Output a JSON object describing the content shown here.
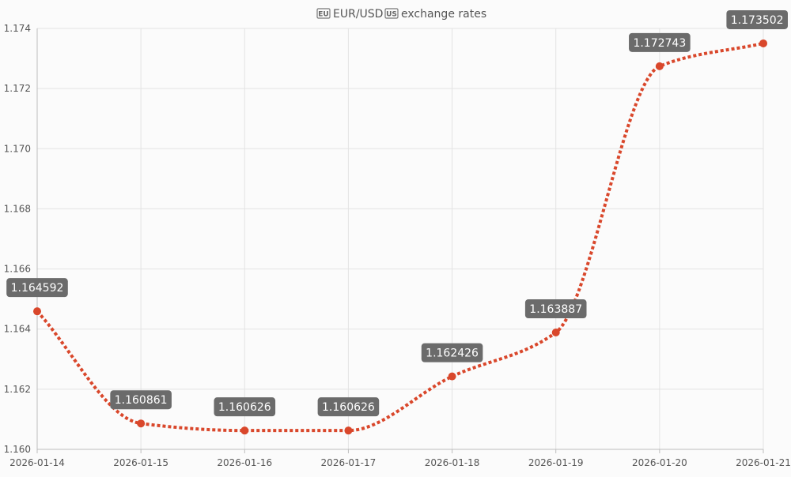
{
  "chart_data": {
    "type": "line",
    "title_flag_1": "EU",
    "title": "EUR/USD",
    "title_flag_2": "US",
    "subtitle": "exchange rates",
    "x": [
      "2026-01-14",
      "2026-01-15",
      "2026-01-16",
      "2026-01-17",
      "2026-01-18",
      "2026-01-19",
      "2026-01-20",
      "2026-01-21"
    ],
    "series": [
      {
        "values": [
          1.164592,
          1.160861,
          1.160626,
          1.160626,
          1.162426,
          1.163887,
          1.172743,
          1.173502
        ],
        "labels": [
          "1.164592",
          "1.160861",
          "1.160626",
          "1.160626",
          "1.162426",
          "1.163887",
          "1.172743",
          "1.173502"
        ]
      }
    ],
    "ylim": [
      1.16,
      1.174
    ],
    "yticks": [
      "1.160",
      "1.162",
      "1.164",
      "1.166",
      "1.168",
      "1.170",
      "1.172",
      "1.174"
    ],
    "grid": true,
    "line_style": "dotted",
    "colors": {
      "line": "#d9472b",
      "point": "#d9472b",
      "label_bg": "#6b6b6b",
      "grid": "#e3e3e3",
      "axis": "#bdbdbd"
    }
  }
}
